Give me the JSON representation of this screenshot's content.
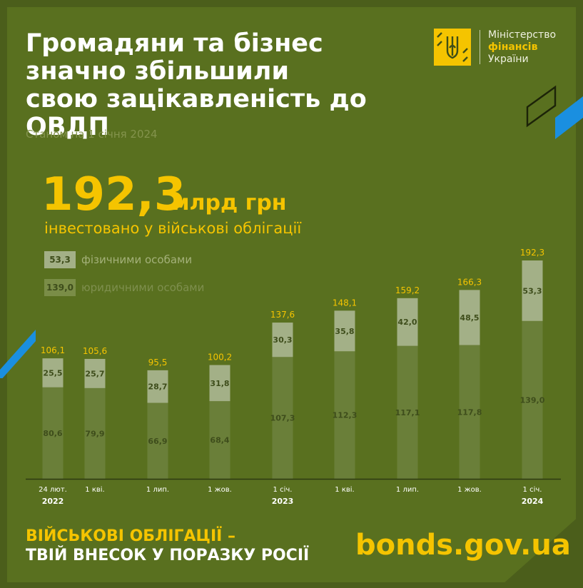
{
  "header": {
    "title": "Громадяни та бізнес\nзначно збільшили\nсвою зацікавленість до ОВДП",
    "subtitle": "Станом на 1 січня 2024"
  },
  "logo": {
    "line1": "Міністерство",
    "line2": "фінансів",
    "line3": "України"
  },
  "highlight": {
    "value": "192,3",
    "unit": "млрд грн",
    "caption": "інвестовано у військові облігації"
  },
  "legend": {
    "physical": {
      "value": "53,3",
      "label": "фізичними особами"
    },
    "legal": {
      "value": "139,0",
      "label": "юридичними особами"
    }
  },
  "chart_data": {
    "type": "bar",
    "stacked": true,
    "categories": [
      "24 лют.",
      "1 кві.",
      "1 лип.",
      "1 жов.",
      "1 січ.",
      "1 кві.",
      "1 лип.",
      "1 жов.",
      "1 січ."
    ],
    "year_labels": [
      {
        "index": 0,
        "label": "2022"
      },
      {
        "index": 4,
        "label": "2023"
      },
      {
        "index": 8,
        "label": "2024"
      }
    ],
    "series": [
      {
        "name": "юридичними особами",
        "values": [
          80.6,
          79.9,
          66.9,
          68.4,
          107.3,
          112.3,
          117.1,
          117.8,
          139.0
        ]
      },
      {
        "name": "фізичними особами",
        "values": [
          25.5,
          25.7,
          28.7,
          31.8,
          30.3,
          35.8,
          42.0,
          48.5,
          53.3
        ]
      }
    ],
    "totals": [
      106.1,
      105.6,
      95.5,
      100.2,
      137.6,
      148.1,
      159.2,
      166.3,
      192.3
    ],
    "ylim": [
      0,
      192.3
    ]
  },
  "colors": {
    "background": "#4b5e1b",
    "panel": "#59701f",
    "accent_yellow": "#f5c400",
    "bar_legal": "#6a7f39",
    "bar_physical": "#a3b087",
    "bar_text": "#3e4d1b",
    "blue_stripe": "#1a8fe0"
  },
  "footer": {
    "slogan_line1": "ВІЙСЬКОВІ ОБЛІГАЦІЇ –",
    "slogan_line2": "ТВІЙ ВНЕСОК У ПОРАЗКУ РОСІЇ",
    "url": "bonds.gov.ua"
  }
}
